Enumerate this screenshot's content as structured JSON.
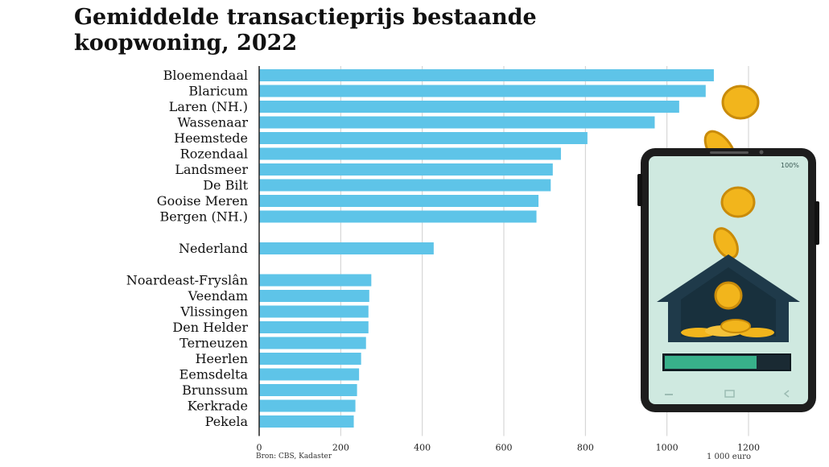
{
  "title": "Gemiddelde transactieprijs bestaande koopwoning, 2022",
  "source": "Bron: CBS, Kadaster",
  "unit_label": "1 000 euro",
  "phone": {
    "status_text": "100%"
  },
  "colors": {
    "bar": "#5ec4e8",
    "grid": "#cfcfcf",
    "axis": "#222222",
    "phone_screen": "#cfe9e0",
    "house": "#1f3a4a",
    "coin": "#f2b51c"
  },
  "chart_data": {
    "type": "bar",
    "orientation": "horizontal",
    "title": "Gemiddelde transactieprijs bestaande koopwoning, 2022",
    "xlabel": "1 000 euro",
    "xlim": [
      0,
      1200
    ],
    "xticks": [
      0,
      200,
      400,
      600,
      800,
      1000,
      1200
    ],
    "xtick_labels": [
      "0",
      "200",
      "400",
      "600",
      "800",
      "1000",
      "1200"
    ],
    "grid": true,
    "groups": [
      {
        "categories": [
          "Bloemendaal",
          "Blaricum",
          "Laren (NH.)",
          "Wassenaar",
          "Heemstede",
          "Rozendaal",
          "Landsmeer",
          "De Bilt",
          "Gooise Meren",
          "Bergen (NH.)"
        ],
        "values": [
          1115,
          1095,
          1030,
          970,
          805,
          740,
          720,
          715,
          685,
          680
        ]
      },
      {
        "categories": [
          "Nederland"
        ],
        "values": [
          428
        ]
      },
      {
        "categories": [
          "Noardeast-Fryslân",
          "Veendam",
          "Vlissingen",
          "Den Helder",
          "Terneuzen",
          "Heerlen",
          "Eemsdelta",
          "Brunssum",
          "Kerkrade",
          "Pekela"
        ],
        "values": [
          275,
          270,
          268,
          268,
          262,
          250,
          245,
          240,
          236,
          232
        ]
      }
    ]
  }
}
